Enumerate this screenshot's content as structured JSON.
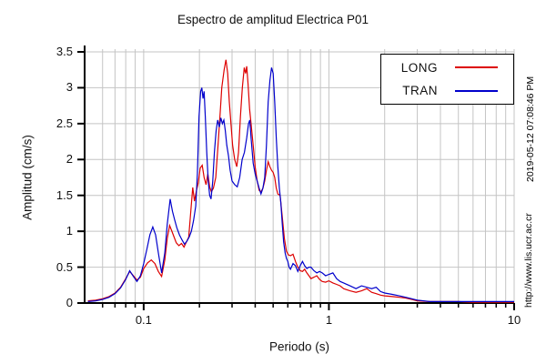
{
  "chart_data": {
    "type": "line",
    "title": "Espectro de amplitud Electrica P01",
    "xlabel": "Periodo (s)",
    "ylabel": "Amplitud (cm/s)",
    "x_scale": "log",
    "xlim": [
      0.048,
      10
    ],
    "ylim": [
      0,
      3.5
    ],
    "x_major_ticks": [
      0.1,
      1,
      10
    ],
    "x_tick_labels": [
      "0.1",
      "1",
      "10"
    ],
    "y_ticks": [
      0,
      0.5,
      1,
      1.5,
      2,
      2.5,
      3,
      3.5
    ],
    "y_tick_labels": [
      "0",
      "0.5",
      "1",
      "1.5",
      "2",
      "2.5",
      "3",
      "3.5"
    ],
    "grid": true,
    "grid_color": "#c4c4c4",
    "legend_position": "top-right",
    "series": [
      {
        "name": "LONG",
        "color": "#dd0000",
        "points": [
          [
            0.05,
            0.03
          ],
          [
            0.055,
            0.04
          ],
          [
            0.06,
            0.06
          ],
          [
            0.065,
            0.09
          ],
          [
            0.07,
            0.14
          ],
          [
            0.075,
            0.22
          ],
          [
            0.08,
            0.34
          ],
          [
            0.084,
            0.44
          ],
          [
            0.088,
            0.38
          ],
          [
            0.092,
            0.32
          ],
          [
            0.096,
            0.36
          ],
          [
            0.1,
            0.48
          ],
          [
            0.105,
            0.56
          ],
          [
            0.11,
            0.6
          ],
          [
            0.115,
            0.55
          ],
          [
            0.12,
            0.44
          ],
          [
            0.125,
            0.37
          ],
          [
            0.13,
            0.6
          ],
          [
            0.134,
            0.9
          ],
          [
            0.138,
            1.08
          ],
          [
            0.142,
            1.0
          ],
          [
            0.146,
            0.92
          ],
          [
            0.15,
            0.84
          ],
          [
            0.155,
            0.8
          ],
          [
            0.16,
            0.83
          ],
          [
            0.165,
            0.78
          ],
          [
            0.17,
            0.85
          ],
          [
            0.175,
            0.92
          ],
          [
            0.18,
            1.3
          ],
          [
            0.184,
            1.61
          ],
          [
            0.188,
            1.42
          ],
          [
            0.192,
            1.55
          ],
          [
            0.197,
            1.67
          ],
          [
            0.202,
            1.88
          ],
          [
            0.207,
            1.92
          ],
          [
            0.212,
            1.75
          ],
          [
            0.217,
            1.65
          ],
          [
            0.222,
            1.8
          ],
          [
            0.227,
            1.62
          ],
          [
            0.232,
            1.55
          ],
          [
            0.238,
            1.6
          ],
          [
            0.245,
            1.75
          ],
          [
            0.252,
            2.2
          ],
          [
            0.258,
            2.6
          ],
          [
            0.264,
            3.0
          ],
          [
            0.272,
            3.25
          ],
          [
            0.278,
            3.39
          ],
          [
            0.284,
            3.2
          ],
          [
            0.29,
            2.8
          ],
          [
            0.296,
            2.5
          ],
          [
            0.302,
            2.2
          ],
          [
            0.31,
            2.0
          ],
          [
            0.318,
            1.9
          ],
          [
            0.325,
            2.1
          ],
          [
            0.333,
            2.6
          ],
          [
            0.341,
            3.0
          ],
          [
            0.349,
            3.28
          ],
          [
            0.355,
            3.2
          ],
          [
            0.36,
            3.3
          ],
          [
            0.366,
            3.05
          ],
          [
            0.373,
            2.7
          ],
          [
            0.38,
            2.5
          ],
          [
            0.39,
            2.2
          ],
          [
            0.4,
            1.9
          ],
          [
            0.41,
            1.7
          ],
          [
            0.42,
            1.57
          ],
          [
            0.43,
            1.55
          ],
          [
            0.44,
            1.6
          ],
          [
            0.45,
            1.7
          ],
          [
            0.46,
            1.85
          ],
          [
            0.47,
            1.97
          ],
          [
            0.48,
            1.9
          ],
          [
            0.49,
            1.85
          ],
          [
            0.5,
            1.82
          ],
          [
            0.51,
            1.75
          ],
          [
            0.52,
            1.6
          ],
          [
            0.53,
            1.52
          ],
          [
            0.545,
            1.5
          ],
          [
            0.56,
            1.2
          ],
          [
            0.575,
            0.9
          ],
          [
            0.59,
            0.72
          ],
          [
            0.605,
            0.67
          ],
          [
            0.62,
            0.66
          ],
          [
            0.64,
            0.68
          ],
          [
            0.66,
            0.58
          ],
          [
            0.68,
            0.5
          ],
          [
            0.7,
            0.45
          ],
          [
            0.72,
            0.44
          ],
          [
            0.74,
            0.47
          ],
          [
            0.76,
            0.42
          ],
          [
            0.78,
            0.38
          ],
          [
            0.8,
            0.34
          ],
          [
            0.83,
            0.36
          ],
          [
            0.86,
            0.38
          ],
          [
            0.89,
            0.33
          ],
          [
            0.92,
            0.3
          ],
          [
            0.96,
            0.29
          ],
          [
            1.0,
            0.31
          ],
          [
            1.05,
            0.28
          ],
          [
            1.1,
            0.26
          ],
          [
            1.15,
            0.24
          ],
          [
            1.2,
            0.2
          ],
          [
            1.3,
            0.17
          ],
          [
            1.4,
            0.15
          ],
          [
            1.5,
            0.17
          ],
          [
            1.6,
            0.2
          ],
          [
            1.7,
            0.15
          ],
          [
            1.8,
            0.13
          ],
          [
            1.9,
            0.11
          ],
          [
            2.0,
            0.1
          ],
          [
            2.2,
            0.09
          ],
          [
            2.4,
            0.08
          ],
          [
            2.6,
            0.07
          ],
          [
            2.8,
            0.05
          ],
          [
            3.0,
            0.03
          ],
          [
            3.5,
            0.02
          ],
          [
            4.0,
            0.02
          ],
          [
            5.0,
            0.02
          ],
          [
            6.0,
            0.01
          ],
          [
            8.0,
            0.01
          ],
          [
            10.0,
            0.01
          ]
        ]
      },
      {
        "name": "TRAN",
        "color": "#0000cc",
        "points": [
          [
            0.05,
            0.02
          ],
          [
            0.055,
            0.03
          ],
          [
            0.06,
            0.05
          ],
          [
            0.065,
            0.08
          ],
          [
            0.07,
            0.13
          ],
          [
            0.075,
            0.21
          ],
          [
            0.08,
            0.33
          ],
          [
            0.084,
            0.45
          ],
          [
            0.088,
            0.37
          ],
          [
            0.092,
            0.3
          ],
          [
            0.096,
            0.38
          ],
          [
            0.1,
            0.55
          ],
          [
            0.104,
            0.75
          ],
          [
            0.108,
            0.95
          ],
          [
            0.112,
            1.06
          ],
          [
            0.116,
            0.95
          ],
          [
            0.12,
            0.7
          ],
          [
            0.125,
            0.42
          ],
          [
            0.13,
            0.7
          ],
          [
            0.134,
            1.1
          ],
          [
            0.139,
            1.45
          ],
          [
            0.143,
            1.28
          ],
          [
            0.147,
            1.16
          ],
          [
            0.151,
            1.05
          ],
          [
            0.156,
            0.95
          ],
          [
            0.161,
            0.88
          ],
          [
            0.166,
            0.82
          ],
          [
            0.171,
            0.86
          ],
          [
            0.176,
            0.92
          ],
          [
            0.181,
            1.0
          ],
          [
            0.186,
            1.15
          ],
          [
            0.191,
            1.35
          ],
          [
            0.195,
            1.8
          ],
          [
            0.199,
            2.6
          ],
          [
            0.203,
            2.95
          ],
          [
            0.206,
            3.0
          ],
          [
            0.209,
            2.85
          ],
          [
            0.212,
            2.95
          ],
          [
            0.215,
            2.6
          ],
          [
            0.219,
            2.1
          ],
          [
            0.223,
            1.7
          ],
          [
            0.227,
            1.5
          ],
          [
            0.231,
            1.45
          ],
          [
            0.236,
            1.7
          ],
          [
            0.241,
            2.1
          ],
          [
            0.246,
            2.4
          ],
          [
            0.251,
            2.55
          ],
          [
            0.256,
            2.45
          ],
          [
            0.261,
            2.58
          ],
          [
            0.266,
            2.5
          ],
          [
            0.271,
            2.55
          ],
          [
            0.276,
            2.4
          ],
          [
            0.281,
            2.2
          ],
          [
            0.287,
            2.05
          ],
          [
            0.293,
            1.85
          ],
          [
            0.3,
            1.7
          ],
          [
            0.31,
            1.65
          ],
          [
            0.32,
            1.62
          ],
          [
            0.33,
            1.75
          ],
          [
            0.34,
            2.0
          ],
          [
            0.35,
            2.1
          ],
          [
            0.36,
            2.3
          ],
          [
            0.368,
            2.5
          ],
          [
            0.374,
            2.55
          ],
          [
            0.38,
            2.3
          ],
          [
            0.39,
            1.95
          ],
          [
            0.4,
            1.8
          ],
          [
            0.41,
            1.7
          ],
          [
            0.42,
            1.6
          ],
          [
            0.43,
            1.52
          ],
          [
            0.44,
            1.6
          ],
          [
            0.45,
            1.75
          ],
          [
            0.46,
            2.2
          ],
          [
            0.47,
            2.8
          ],
          [
            0.48,
            3.1
          ],
          [
            0.49,
            3.28
          ],
          [
            0.5,
            3.2
          ],
          [
            0.51,
            2.8
          ],
          [
            0.52,
            2.3
          ],
          [
            0.53,
            1.9
          ],
          [
            0.54,
            1.6
          ],
          [
            0.55,
            1.4
          ],
          [
            0.56,
            1.1
          ],
          [
            0.57,
            0.85
          ],
          [
            0.58,
            0.7
          ],
          [
            0.59,
            0.62
          ],
          [
            0.6,
            0.58
          ],
          [
            0.61,
            0.5
          ],
          [
            0.62,
            0.47
          ],
          [
            0.64,
            0.55
          ],
          [
            0.66,
            0.52
          ],
          [
            0.68,
            0.44
          ],
          [
            0.7,
            0.52
          ],
          [
            0.72,
            0.58
          ],
          [
            0.74,
            0.52
          ],
          [
            0.76,
            0.48
          ],
          [
            0.78,
            0.5
          ],
          [
            0.8,
            0.5
          ],
          [
            0.83,
            0.45
          ],
          [
            0.86,
            0.42
          ],
          [
            0.89,
            0.44
          ],
          [
            0.92,
            0.42
          ],
          [
            0.96,
            0.38
          ],
          [
            1.0,
            0.4
          ],
          [
            1.05,
            0.42
          ],
          [
            1.1,
            0.34
          ],
          [
            1.15,
            0.3
          ],
          [
            1.2,
            0.28
          ],
          [
            1.3,
            0.24
          ],
          [
            1.4,
            0.2
          ],
          [
            1.5,
            0.24
          ],
          [
            1.6,
            0.22
          ],
          [
            1.7,
            0.2
          ],
          [
            1.8,
            0.22
          ],
          [
            1.9,
            0.16
          ],
          [
            2.0,
            0.14
          ],
          [
            2.2,
            0.12
          ],
          [
            2.4,
            0.1
          ],
          [
            2.6,
            0.08
          ],
          [
            2.8,
            0.06
          ],
          [
            3.0,
            0.04
          ],
          [
            3.5,
            0.02
          ],
          [
            4.0,
            0.02
          ],
          [
            5.0,
            0.02
          ],
          [
            6.0,
            0.02
          ],
          [
            8.0,
            0.02
          ],
          [
            10.0,
            0.02
          ]
        ]
      }
    ]
  },
  "footer": {
    "timestamp": "2019-05-12 07:08:46 PM",
    "url": "http://www.lis.ucr.ac.cr"
  }
}
